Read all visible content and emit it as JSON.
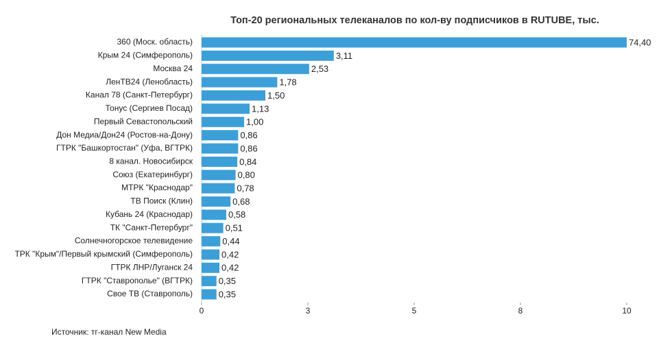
{
  "chart_data": {
    "type": "bar",
    "orientation": "horizontal",
    "title": "Топ-20 региональных телеканалов по кол-ву подписчиков в RUTUBE, тыс.",
    "categories": [
      "360 (Моск. область)",
      "Крым 24 (Симферополь)",
      "Москва 24",
      "ЛенТВ24 (Ленобласть)",
      "Канал 78 (Санкт-Петербург)",
      "Тонус (Сергиев Посад)",
      "Первый Севастопольский",
      "Дон Медиа/Дон24 (Ростов-на-Дону)",
      "ГТРК \"Башкортостан\" (Уфа, ВГТРК)",
      "8 канал. Новосибирск",
      "Союз (Екатеринбург)",
      "МТРК \"Краснодар\"",
      "ТВ Поиск (Клин)",
      "Кубань 24 (Краснодар)",
      "ТК \"Санкт-Петербург\"",
      "Солнечногорское телевидение",
      "ТРК \"Крым\"/Первый крымский (Симферополь)",
      "ГТРК ЛНР/Луганск 24",
      "ГТРК \"Ставрополье\" (ВГТРК)",
      "Свое ТВ (Ставрополь)"
    ],
    "values": [
      74.4,
      3.11,
      2.53,
      1.78,
      1.5,
      1.13,
      1.0,
      0.86,
      0.86,
      0.84,
      0.8,
      0.78,
      0.68,
      0.58,
      0.51,
      0.44,
      0.42,
      0.42,
      0.35,
      0.35
    ],
    "value_labels": [
      "74,40",
      "3,11",
      "2,53",
      "1,78",
      "1,50",
      "1,13",
      "1,00",
      "0,86",
      "0,86",
      "0,84",
      "0,80",
      "0,78",
      "0,68",
      "0,58",
      "0,51",
      "0,44",
      "0,42",
      "0,42",
      "0,35",
      "0,35"
    ],
    "color": "#3d9fd8",
    "xlim": [
      0,
      10
    ],
    "xticks": [
      0,
      {
        "value": 2.5,
        "label": "3"
      },
      5,
      {
        "value": 7.5,
        "label": "8"
      },
      10
    ],
    "source": "Источник: тг-канал New Media"
  }
}
